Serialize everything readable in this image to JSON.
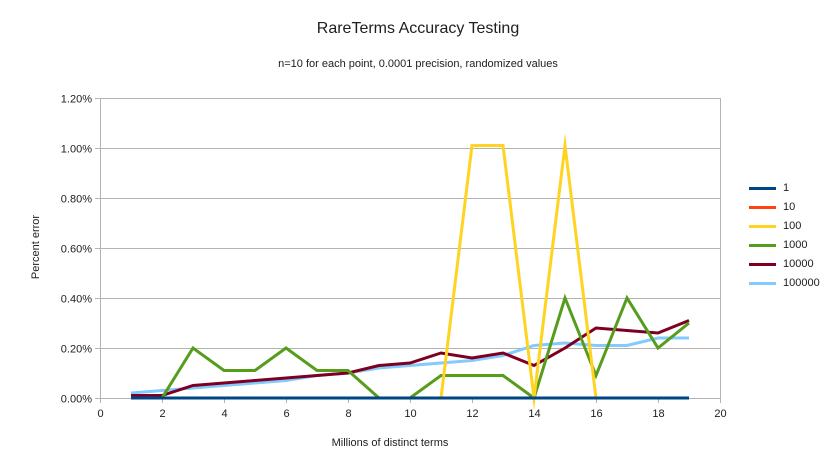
{
  "chart_data": {
    "type": "line",
    "title": "RareTerms Accuracy Testing",
    "subtitle": "n=10 for each point, 0.0001 precision, randomized values",
    "xlabel": "Millions of distinct terms",
    "ylabel": "Percent error",
    "xlim": [
      0,
      20
    ],
    "ylim_percent": [
      0,
      1.2
    ],
    "grid": true,
    "legend_position": "right",
    "grid_color": "#b3b3b3",
    "text_color": "#202020",
    "background_color": "#ffffff",
    "x_ticks": [
      0,
      2,
      4,
      6,
      8,
      10,
      12,
      14,
      16,
      18,
      20
    ],
    "y_ticks": [
      {
        "value": 0.0,
        "label": "0.00%"
      },
      {
        "value": 0.2,
        "label": "0.20%"
      },
      {
        "value": 0.4,
        "label": "0.40%"
      },
      {
        "value": 0.6,
        "label": "0.60%"
      },
      {
        "value": 0.8,
        "label": "0.80%"
      },
      {
        "value": 1.0,
        "label": "1.00%"
      },
      {
        "value": 1.2,
        "label": "1.20%"
      }
    ],
    "x": [
      1,
      2,
      3,
      4,
      5,
      6,
      7,
      8,
      9,
      10,
      11,
      12,
      13,
      14,
      15,
      16,
      17,
      18,
      19
    ],
    "series": [
      {
        "name": "1",
        "color": "#004586",
        "values_percent": [
          0,
          0,
          0,
          0,
          0,
          0,
          0,
          0,
          0,
          0,
          0,
          0,
          0,
          0,
          0,
          0,
          0,
          0,
          0
        ]
      },
      {
        "name": "10",
        "color": "#ff420e",
        "values_percent": [
          0,
          0,
          0,
          0,
          0,
          0,
          0,
          0,
          0,
          0,
          0,
          0,
          0,
          0,
          0,
          0,
          0,
          0,
          0
        ]
      },
      {
        "name": "100",
        "color": "#ffd320",
        "values_percent": [
          0,
          0,
          0,
          0,
          0,
          0,
          0,
          0,
          0,
          0,
          0,
          1.01,
          1.01,
          0,
          1.01,
          0,
          0,
          0,
          0
        ]
      },
      {
        "name": "1000",
        "color": "#579d1c",
        "values_percent": [
          0,
          0,
          0.2,
          0.11,
          0.11,
          0.2,
          0.11,
          0.11,
          0,
          0,
          0.09,
          0.09,
          0.09,
          0,
          0.4,
          0.09,
          0.4,
          0.2,
          0.3
        ]
      },
      {
        "name": "10000",
        "color": "#7e0021",
        "values_percent": [
          0.01,
          0.01,
          0.05,
          0.06,
          0.07,
          0.08,
          0.09,
          0.1,
          0.13,
          0.14,
          0.18,
          0.16,
          0.18,
          0.13,
          0.2,
          0.28,
          0.27,
          0.26,
          0.31
        ]
      },
      {
        "name": "100000",
        "color": "#83caff",
        "values_percent": [
          0.02,
          0.03,
          0.04,
          0.05,
          0.06,
          0.07,
          0.09,
          0.1,
          0.12,
          0.13,
          0.14,
          0.15,
          0.17,
          0.21,
          0.22,
          0.21,
          0.21,
          0.24,
          0.24
        ]
      }
    ],
    "draw_order": [
      "100000",
      "10000",
      "1000",
      "100",
      "10",
      "1"
    ]
  }
}
